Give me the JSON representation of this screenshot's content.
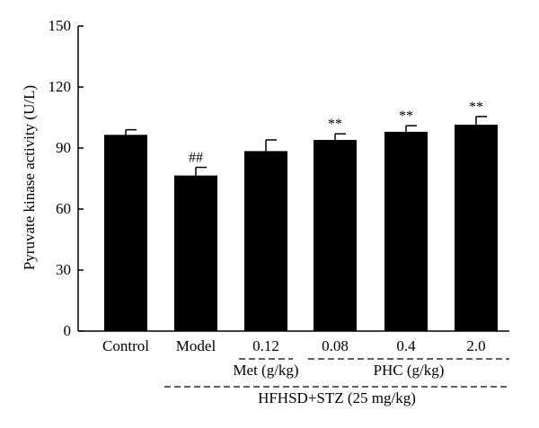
{
  "chart_data": {
    "type": "bar",
    "ylabel": "Pyruvate kinase activity (U/L)",
    "ylim": [
      0,
      150
    ],
    "yticks": [
      0,
      30,
      60,
      90,
      120,
      150
    ],
    "categories": [
      "Control",
      "Model",
      "0.12",
      "0.08",
      "0.4",
      "2.0"
    ],
    "values": [
      96.5,
      76.5,
      88.5,
      94,
      98,
      101.5
    ],
    "errors": [
      2.5,
      4,
      5.5,
      3,
      3,
      4
    ],
    "annotations": [
      "",
      "##",
      "",
      "**",
      "**",
      "**"
    ],
    "bar_color": "#000000",
    "groups": [
      {
        "label": "Met (g/kg)",
        "categories": [
          "0.12"
        ]
      },
      {
        "label": "PHC (g/kg)",
        "categories": [
          "0.08",
          "0.4",
          "2.0"
        ]
      },
      {
        "label": "HFHSD+STZ (25 mg/kg)",
        "categories": [
          "Model",
          "0.12",
          "0.08",
          "0.4",
          "2.0"
        ]
      }
    ]
  }
}
